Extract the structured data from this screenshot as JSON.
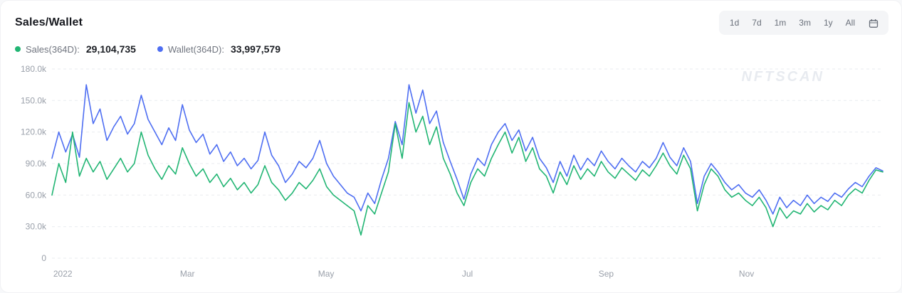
{
  "page": {
    "title": "Sales/Wallet",
    "watermark": "NFTSCAN"
  },
  "toolbar": {
    "ranges": [
      "1d",
      "7d",
      "1m",
      "3m",
      "1y",
      "All"
    ],
    "calendar_icon": "calendar-icon"
  },
  "legend": {
    "items": [
      {
        "label": "Sales(364D):",
        "value": "29,104,735",
        "color": "#21b573"
      },
      {
        "label": "Wallet(364D):",
        "value": "33,997,579",
        "color": "#4e6ef2"
      }
    ]
  },
  "chart_data": {
    "type": "line",
    "title": "Sales/Wallet",
    "x_unit": "day",
    "x_range_days": 364,
    "y_unit": "thousands",
    "ylim": [
      0,
      180
    ],
    "grid": "horizontal-dashed",
    "legend_position": "top-left",
    "y_ticks": [
      {
        "value": 180,
        "label": "180.0k"
      },
      {
        "value": 150,
        "label": "150.0k"
      },
      {
        "value": 120,
        "label": "120.0k"
      },
      {
        "value": 90,
        "label": "90.0k"
      },
      {
        "value": 60,
        "label": "60.0k"
      },
      {
        "value": 30,
        "label": "30.0k"
      },
      {
        "value": 0,
        "label": "0"
      }
    ],
    "x_ticks": [
      {
        "label": "2022",
        "f": 0.013
      },
      {
        "label": "Mar",
        "f": 0.163
      },
      {
        "label": "May",
        "f": 0.33
      },
      {
        "label": "Jul",
        "f": 0.5
      },
      {
        "label": "Sep",
        "f": 0.667
      },
      {
        "label": "Nov",
        "f": 0.836
      }
    ],
    "series": [
      {
        "name": "Sales(364D)",
        "color": "#21b573",
        "values": [
          60,
          90,
          72,
          120,
          78,
          95,
          82,
          92,
          75,
          85,
          95,
          82,
          90,
          120,
          98,
          85,
          75,
          88,
          80,
          105,
          90,
          78,
          85,
          72,
          80,
          68,
          76,
          65,
          72,
          62,
          70,
          88,
          72,
          65,
          55,
          62,
          72,
          66,
          74,
          85,
          68,
          60,
          55,
          50,
          45,
          22,
          50,
          42,
          62,
          82,
          128,
          95,
          148,
          120,
          135,
          108,
          125,
          95,
          80,
          62,
          50,
          72,
          85,
          78,
          95,
          108,
          120,
          100,
          115,
          92,
          105,
          85,
          78,
          62,
          82,
          70,
          88,
          75,
          85,
          78,
          92,
          82,
          76,
          86,
          80,
          74,
          84,
          78,
          88,
          100,
          88,
          80,
          98,
          85,
          45,
          70,
          85,
          78,
          65,
          58,
          62,
          55,
          50,
          58,
          48,
          30,
          48,
          38,
          45,
          42,
          52,
          44,
          50,
          46,
          55,
          50,
          60,
          66,
          62,
          74,
          84,
          82
        ]
      },
      {
        "name": "Wallet(364D)",
        "color": "#4e6ef2",
        "values": [
          95,
          120,
          101,
          118,
          96,
          165,
          128,
          142,
          112,
          125,
          135,
          118,
          128,
          155,
          132,
          120,
          108,
          124,
          112,
          146,
          122,
          110,
          118,
          99,
          108,
          92,
          101,
          88,
          95,
          85,
          93,
          120,
          98,
          88,
          72,
          80,
          92,
          86,
          95,
          112,
          90,
          78,
          70,
          62,
          58,
          45,
          62,
          52,
          75,
          95,
          130,
          108,
          165,
          138,
          160,
          128,
          140,
          110,
          92,
          75,
          56,
          80,
          95,
          88,
          108,
          120,
          128,
          112,
          122,
          102,
          115,
          95,
          86,
          72,
          92,
          78,
          98,
          84,
          95,
          88,
          102,
          92,
          85,
          95,
          88,
          82,
          92,
          86,
          95,
          110,
          96,
          88,
          105,
          92,
          52,
          78,
          90,
          82,
          72,
          65,
          70,
          62,
          58,
          65,
          55,
          42,
          58,
          48,
          55,
          50,
          60,
          52,
          58,
          54,
          62,
          58,
          66,
          72,
          68,
          78,
          86,
          83
        ]
      }
    ]
  }
}
